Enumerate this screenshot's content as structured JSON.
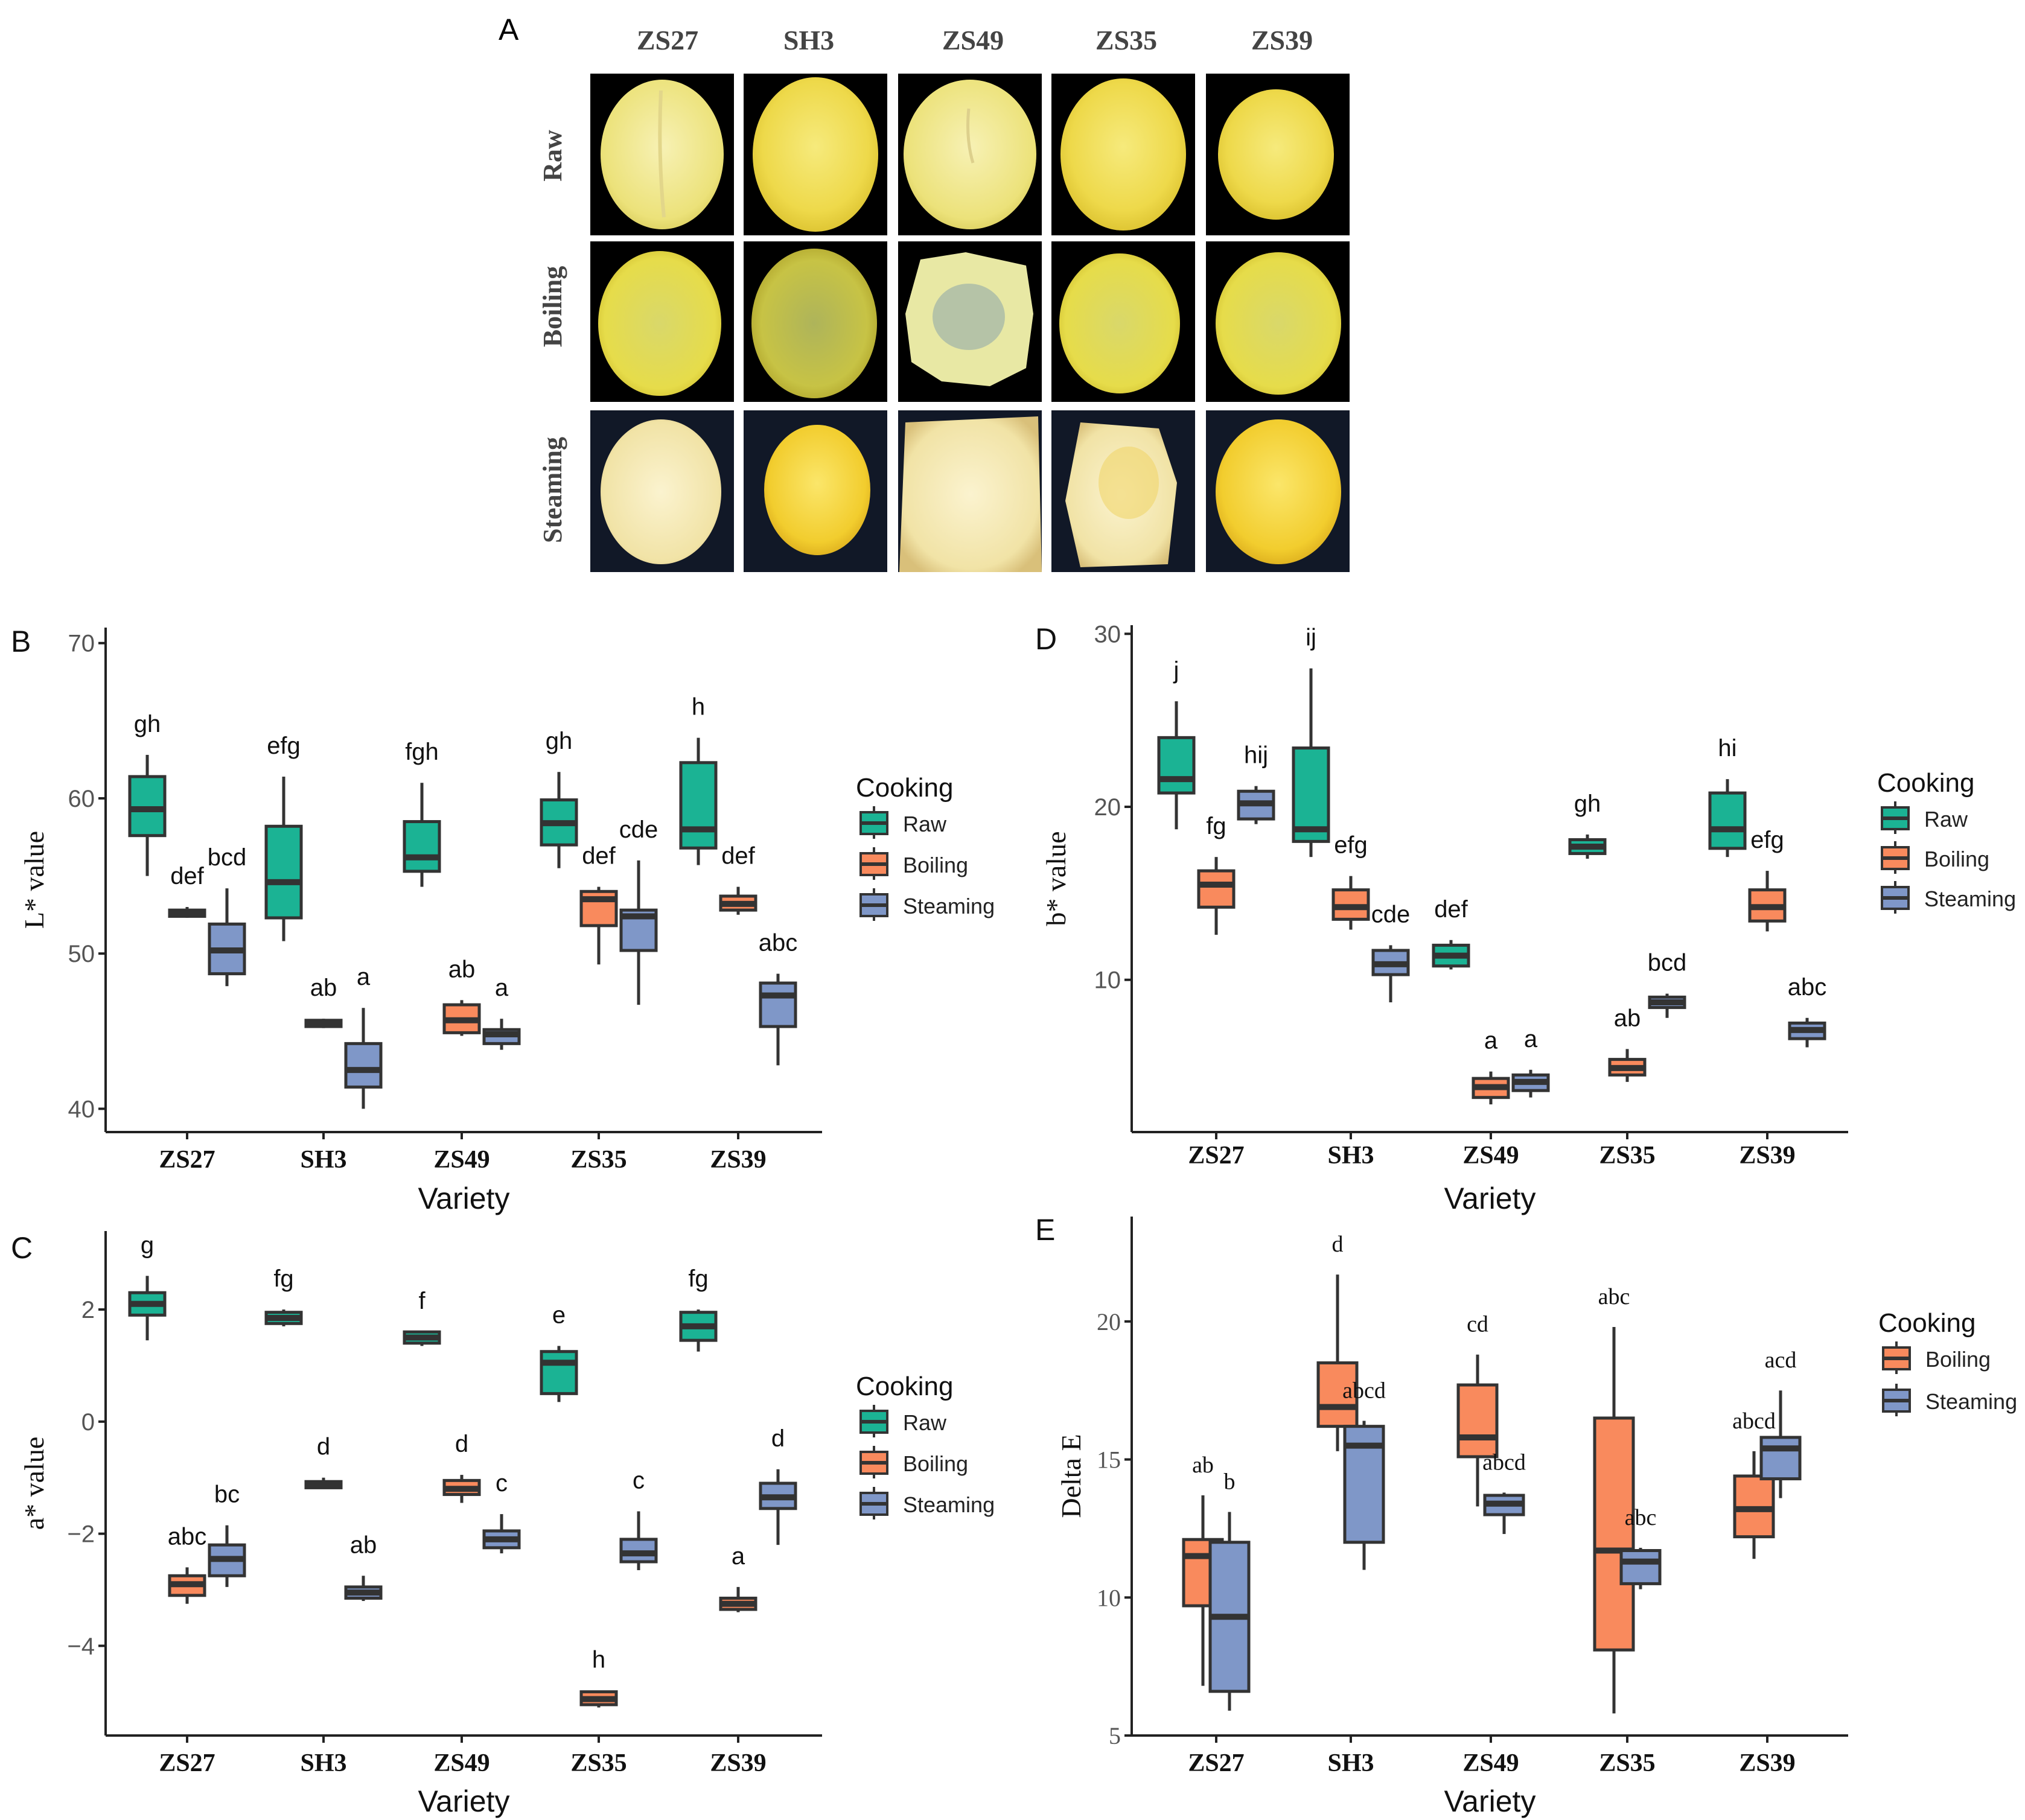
{
  "colors": {
    "raw": "#1bb394",
    "boiling": "#f98a5d",
    "steaming": "#7f97c8",
    "frame": "#222222",
    "tick_text": "#555555"
  },
  "panel_a": {
    "letter": "A",
    "columns": [
      "ZS27",
      "SH3",
      "ZS49",
      "ZS35",
      "ZS39"
    ],
    "rows": [
      "Raw",
      "Boiling",
      "Steaming"
    ]
  },
  "chart_data": [
    {
      "id": "B",
      "letter": "B",
      "type": "box",
      "ylabel": "L* value",
      "xlabel": "Variety",
      "ylim": [
        38.5,
        71
      ],
      "yticks": [
        40,
        50,
        60,
        70
      ],
      "categories": [
        "ZS27",
        "SH3",
        "ZS49",
        "ZS35",
        "ZS39"
      ],
      "legend_title": "Cooking",
      "legend_items": [
        {
          "key": "raw",
          "label": "Raw"
        },
        {
          "key": "boiling",
          "label": "Boiling"
        },
        {
          "key": "steaming",
          "label": "Steaming"
        }
      ],
      "boxes": [
        {
          "cat": 0,
          "series": "raw",
          "min": 55.0,
          "q1": 57.6,
          "med": 59.3,
          "q3": 61.4,
          "max": 62.8,
          "sig": "gh"
        },
        {
          "cat": 0,
          "series": "boiling",
          "min": 52.3,
          "q1": 52.4,
          "med": 52.6,
          "q3": 52.8,
          "max": 53.0,
          "sig": "def"
        },
        {
          "cat": 0,
          "series": "steaming",
          "min": 47.9,
          "q1": 48.7,
          "med": 50.2,
          "q3": 51.9,
          "max": 54.2,
          "sig": "bcd"
        },
        {
          "cat": 1,
          "series": "raw",
          "min": 50.8,
          "q1": 52.3,
          "med": 54.6,
          "q3": 58.2,
          "max": 61.4,
          "sig": "efg"
        },
        {
          "cat": 1,
          "series": "boiling",
          "min": 45.2,
          "q1": 45.3,
          "med": 45.5,
          "q3": 45.7,
          "max": 45.8,
          "sig": "ab"
        },
        {
          "cat": 1,
          "series": "steaming",
          "min": 40.0,
          "q1": 41.4,
          "med": 42.5,
          "q3": 44.2,
          "max": 46.5,
          "sig": "a"
        },
        {
          "cat": 2,
          "series": "raw",
          "min": 54.3,
          "q1": 55.3,
          "med": 56.2,
          "q3": 58.5,
          "max": 61.0,
          "sig": "fgh"
        },
        {
          "cat": 2,
          "series": "boiling",
          "min": 44.7,
          "q1": 44.9,
          "med": 45.7,
          "q3": 46.7,
          "max": 47.0,
          "sig": "ab"
        },
        {
          "cat": 2,
          "series": "steaming",
          "min": 43.8,
          "q1": 44.2,
          "med": 44.8,
          "q3": 45.1,
          "max": 45.8,
          "sig": "a"
        },
        {
          "cat": 3,
          "series": "raw",
          "min": 55.5,
          "q1": 57.0,
          "med": 58.4,
          "q3": 59.9,
          "max": 61.7,
          "sig": "gh"
        },
        {
          "cat": 3,
          "series": "boiling",
          "min": 49.3,
          "q1": 51.8,
          "med": 53.5,
          "q3": 54.0,
          "max": 54.3,
          "sig": "def"
        },
        {
          "cat": 3,
          "series": "steaming",
          "min": 46.7,
          "q1": 50.2,
          "med": 52.4,
          "q3": 52.8,
          "max": 56.0,
          "sig": "cde"
        },
        {
          "cat": 4,
          "series": "raw",
          "min": 55.7,
          "q1": 56.8,
          "med": 58.0,
          "q3": 62.3,
          "max": 63.9,
          "sig": "h"
        },
        {
          "cat": 4,
          "series": "boiling",
          "min": 52.5,
          "q1": 52.8,
          "med": 53.2,
          "q3": 53.7,
          "max": 54.3,
          "sig": "def"
        },
        {
          "cat": 4,
          "series": "steaming",
          "min": 42.8,
          "q1": 45.3,
          "med": 47.3,
          "q3": 48.1,
          "max": 48.7,
          "sig": "abc"
        }
      ]
    },
    {
      "id": "D",
      "letter": "D",
      "type": "box",
      "ylabel": "b* value",
      "xlabel": "Variety",
      "ylim": [
        1.2,
        30.5
      ],
      "yticks": [
        10,
        20,
        30
      ],
      "categories": [
        "ZS27",
        "SH3",
        "ZS49",
        "ZS35",
        "ZS39"
      ],
      "legend_title": "Cooking",
      "legend_items": [
        {
          "key": "raw",
          "label": "Raw"
        },
        {
          "key": "boiling",
          "label": "Boiling"
        },
        {
          "key": "steaming",
          "label": "Steaming"
        }
      ],
      "boxes": [
        {
          "cat": 0,
          "series": "raw",
          "min": 18.7,
          "q1": 20.8,
          "med": 21.6,
          "q3": 24.0,
          "max": 26.1,
          "sig": "j"
        },
        {
          "cat": 0,
          "series": "boiling",
          "min": 12.6,
          "q1": 14.2,
          "med": 15.5,
          "q3": 16.3,
          "max": 17.1,
          "sig": "fg"
        },
        {
          "cat": 0,
          "series": "steaming",
          "min": 19.0,
          "q1": 19.3,
          "med": 20.2,
          "q3": 20.9,
          "max": 21.2,
          "sig": "hij"
        },
        {
          "cat": 1,
          "series": "raw",
          "min": 17.1,
          "q1": 18.0,
          "med": 18.7,
          "q3": 23.4,
          "max": 28.0,
          "sig": "ij"
        },
        {
          "cat": 1,
          "series": "boiling",
          "min": 12.9,
          "q1": 13.5,
          "med": 14.2,
          "q3": 15.2,
          "max": 16.0,
          "sig": "efg"
        },
        {
          "cat": 1,
          "series": "steaming",
          "min": 8.7,
          "q1": 10.3,
          "med": 10.9,
          "q3": 11.7,
          "max": 12.0,
          "sig": "cde"
        },
        {
          "cat": 2,
          "series": "raw",
          "min": 10.6,
          "q1": 10.8,
          "med": 11.4,
          "q3": 12.0,
          "max": 12.3,
          "sig": "def"
        },
        {
          "cat": 2,
          "series": "boiling",
          "min": 2.8,
          "q1": 3.2,
          "med": 3.8,
          "q3": 4.3,
          "max": 4.7,
          "sig": "a"
        },
        {
          "cat": 2,
          "series": "steaming",
          "min": 3.2,
          "q1": 3.6,
          "med": 4.1,
          "q3": 4.5,
          "max": 4.8,
          "sig": "a"
        },
        {
          "cat": 3,
          "series": "raw",
          "min": 17.0,
          "q1": 17.3,
          "med": 17.7,
          "q3": 18.1,
          "max": 18.4,
          "sig": "gh"
        },
        {
          "cat": 3,
          "series": "boiling",
          "min": 4.1,
          "q1": 4.5,
          "med": 4.9,
          "q3": 5.4,
          "max": 6.0,
          "sig": "ab"
        },
        {
          "cat": 3,
          "series": "steaming",
          "min": 7.8,
          "q1": 8.4,
          "med": 8.7,
          "q3": 9.0,
          "max": 9.2,
          "sig": "bcd"
        },
        {
          "cat": 4,
          "series": "raw",
          "min": 17.1,
          "q1": 17.6,
          "med": 18.7,
          "q3": 20.8,
          "max": 21.6,
          "sig": "hi"
        },
        {
          "cat": 4,
          "series": "boiling",
          "min": 12.8,
          "q1": 13.4,
          "med": 14.2,
          "q3": 15.2,
          "max": 16.3,
          "sig": "efg"
        },
        {
          "cat": 4,
          "series": "steaming",
          "min": 6.1,
          "q1": 6.6,
          "med": 7.1,
          "q3": 7.5,
          "max": 7.8,
          "sig": "abc"
        }
      ]
    },
    {
      "id": "C",
      "letter": "C",
      "type": "box",
      "ylabel": "a* value",
      "xlabel": "Variety",
      "ylim": [
        -5.6,
        3.4
      ],
      "yticks": [
        -4,
        -2,
        0,
        2
      ],
      "categories": [
        "ZS27",
        "SH3",
        "ZS49",
        "ZS35",
        "ZS39"
      ],
      "legend_title": "Cooking",
      "legend_items": [
        {
          "key": "raw",
          "label": "Raw"
        },
        {
          "key": "boiling",
          "label": "Boiling"
        },
        {
          "key": "steaming",
          "label": "Steaming"
        }
      ],
      "boxes": [
        {
          "cat": 0,
          "series": "raw",
          "min": 1.45,
          "q1": 1.9,
          "med": 2.1,
          "q3": 2.3,
          "max": 2.6,
          "sig": "g"
        },
        {
          "cat": 0,
          "series": "boiling",
          "min": -3.25,
          "q1": -3.1,
          "med": -2.9,
          "q3": -2.75,
          "max": -2.6,
          "sig": "abc"
        },
        {
          "cat": 0,
          "series": "steaming",
          "min": -2.95,
          "q1": -2.75,
          "med": -2.45,
          "q3": -2.2,
          "max": -1.85,
          "sig": "bc"
        },
        {
          "cat": 1,
          "series": "raw",
          "min": 1.7,
          "q1": 1.75,
          "med": 1.85,
          "q3": 1.95,
          "max": 2.0,
          "sig": "fg"
        },
        {
          "cat": 1,
          "series": "boiling",
          "min": -1.2,
          "q1": -1.18,
          "med": -1.12,
          "q3": -1.07,
          "max": -1.0,
          "sig": "d"
        },
        {
          "cat": 1,
          "series": "steaming",
          "min": -3.2,
          "q1": -3.15,
          "med": -3.05,
          "q3": -2.95,
          "max": -2.75,
          "sig": "ab"
        },
        {
          "cat": 2,
          "series": "raw",
          "min": 1.35,
          "q1": 1.4,
          "med": 1.5,
          "q3": 1.6,
          "max": 1.6,
          "sig": "f"
        },
        {
          "cat": 2,
          "series": "boiling",
          "min": -1.45,
          "q1": -1.3,
          "med": -1.2,
          "q3": -1.05,
          "max": -0.95,
          "sig": "d"
        },
        {
          "cat": 2,
          "series": "steaming",
          "min": -2.35,
          "q1": -2.25,
          "med": -2.1,
          "q3": -1.95,
          "max": -1.65,
          "sig": "c"
        },
        {
          "cat": 3,
          "series": "raw",
          "min": 0.35,
          "q1": 0.5,
          "med": 1.05,
          "q3": 1.25,
          "max": 1.35,
          "sig": "e"
        },
        {
          "cat": 3,
          "series": "boiling",
          "min": -5.1,
          "q1": -5.05,
          "med": -4.95,
          "q3": -4.82,
          "max": -4.8,
          "sig": "h"
        },
        {
          "cat": 3,
          "series": "steaming",
          "min": -2.65,
          "q1": -2.5,
          "med": -2.35,
          "q3": -2.1,
          "max": -1.6,
          "sig": "c"
        },
        {
          "cat": 4,
          "series": "raw",
          "min": 1.25,
          "q1": 1.45,
          "med": 1.7,
          "q3": 1.95,
          "max": 2.0,
          "sig": "fg"
        },
        {
          "cat": 4,
          "series": "boiling",
          "min": -3.4,
          "q1": -3.35,
          "med": -3.25,
          "q3": -3.15,
          "max": -2.95,
          "sig": "a"
        },
        {
          "cat": 4,
          "series": "steaming",
          "min": -2.2,
          "q1": -1.55,
          "med": -1.35,
          "q3": -1.1,
          "max": -0.85,
          "sig": "d"
        }
      ]
    },
    {
      "id": "E",
      "letter": "E",
      "type": "box",
      "ylabel": "Delta E",
      "xlabel": "Variety",
      "ylim": [
        5,
        23.8
      ],
      "yticks": [
        5,
        10,
        15,
        20
      ],
      "categories": [
        "ZS27",
        "SH3",
        "ZS49",
        "ZS35",
        "ZS39"
      ],
      "legend_title": "Cooking",
      "legend_items": [
        {
          "key": "boiling",
          "label": "Boiling"
        },
        {
          "key": "steaming",
          "label": "Steaming"
        }
      ],
      "boxes": [
        {
          "cat": 0,
          "series": "boiling",
          "min": 6.8,
          "q1": 9.7,
          "med": 11.5,
          "q3": 12.1,
          "max": 13.7,
          "sig": "ab"
        },
        {
          "cat": 0,
          "series": "steaming",
          "min": 5.9,
          "q1": 6.6,
          "med": 9.3,
          "q3": 12.0,
          "max": 13.1,
          "sig": "b"
        },
        {
          "cat": 1,
          "series": "boiling",
          "min": 15.3,
          "q1": 16.2,
          "med": 16.9,
          "q3": 18.5,
          "max": 21.7,
          "sig": "d"
        },
        {
          "cat": 1,
          "series": "steaming",
          "min": 11.0,
          "q1": 12.0,
          "med": 15.5,
          "q3": 16.2,
          "max": 16.4,
          "sig": "abcd"
        },
        {
          "cat": 2,
          "series": "boiling",
          "min": 13.3,
          "q1": 15.1,
          "med": 15.8,
          "q3": 17.7,
          "max": 18.8,
          "sig": "cd"
        },
        {
          "cat": 2,
          "series": "steaming",
          "min": 12.3,
          "q1": 13.0,
          "med": 13.4,
          "q3": 13.7,
          "max": 13.8,
          "sig": "abcd"
        },
        {
          "cat": 3,
          "series": "boiling",
          "min": 5.8,
          "q1": 8.1,
          "med": 11.7,
          "q3": 16.5,
          "max": 19.8,
          "sig": "abc"
        },
        {
          "cat": 3,
          "series": "steaming",
          "min": 10.3,
          "q1": 10.5,
          "med": 11.3,
          "q3": 11.7,
          "max": 11.8,
          "sig": "abc"
        },
        {
          "cat": 4,
          "series": "boiling",
          "min": 11.4,
          "q1": 12.2,
          "med": 13.2,
          "q3": 14.4,
          "max": 15.3,
          "sig": "abcd"
        },
        {
          "cat": 4,
          "series": "steaming",
          "min": 13.6,
          "q1": 14.3,
          "med": 15.4,
          "q3": 15.8,
          "max": 17.5,
          "sig": "acd"
        }
      ]
    }
  ]
}
